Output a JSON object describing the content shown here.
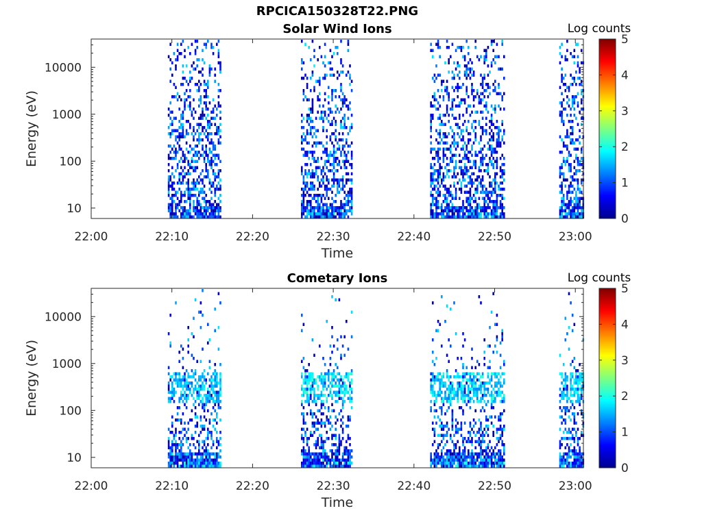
{
  "figure": {
    "filename": "RPCICA150328T22.PNG"
  },
  "chart_data": [
    {
      "type": "heatmap",
      "title": "Solar Wind Ions",
      "xlabel": "Time",
      "ylabel": "Energy (eV)",
      "xlim": [
        "22:00",
        "23:01"
      ],
      "ylog": true,
      "ylim": [
        6,
        40000
      ],
      "xticks": [
        "22:00",
        "22:10",
        "22:20",
        "22:30",
        "22:40",
        "22:50",
        "23:00"
      ],
      "yticks": [
        "10",
        "100",
        "1000",
        "10000"
      ],
      "colorbar": {
        "label": "Log counts",
        "range": [
          0,
          5
        ],
        "ticks": [
          "0",
          "1",
          "2",
          "3",
          "4",
          "5"
        ],
        "colormap": "jet"
      },
      "data_intervals": [
        {
          "start": "22:09.5",
          "end": "22:16",
          "max_log_counts": 1.2
        },
        {
          "start": "22:26",
          "end": "22:32.3",
          "max_log_counts": 1.9
        },
        {
          "start": "22:42",
          "end": "22:51.3",
          "max_log_counts": 1.8
        },
        {
          "start": "22:58",
          "end": "23:01",
          "max_log_counts": 1.7
        }
      ],
      "grid": false
    },
    {
      "type": "heatmap",
      "title": "Cometary Ions",
      "xlabel": "Time",
      "ylabel": "Energy (eV)",
      "xlim": [
        "22:00",
        "23:01"
      ],
      "ylog": true,
      "ylim": [
        6,
        40000
      ],
      "xticks": [
        "22:00",
        "22:10",
        "22:20",
        "22:30",
        "22:40",
        "22:50",
        "23:00"
      ],
      "yticks": [
        "10",
        "100",
        "1000",
        "10000"
      ],
      "colorbar": {
        "label": "Log counts",
        "range": [
          0,
          5
        ],
        "ticks": [
          "0",
          "1",
          "2",
          "3",
          "4",
          "5"
        ],
        "colormap": "jet"
      },
      "data_intervals": [
        {
          "start": "22:09.5",
          "end": "22:16",
          "max_log_counts": 2.0
        },
        {
          "start": "22:26",
          "end": "22:32.3",
          "max_log_counts": 2.2
        },
        {
          "start": "22:42",
          "end": "22:51.3",
          "max_log_counts": 2.1
        },
        {
          "start": "22:58",
          "end": "23:01",
          "max_log_counts": 2.0
        }
      ],
      "bright_band_energy_eV": [
        150,
        700
      ],
      "grid": false
    }
  ]
}
